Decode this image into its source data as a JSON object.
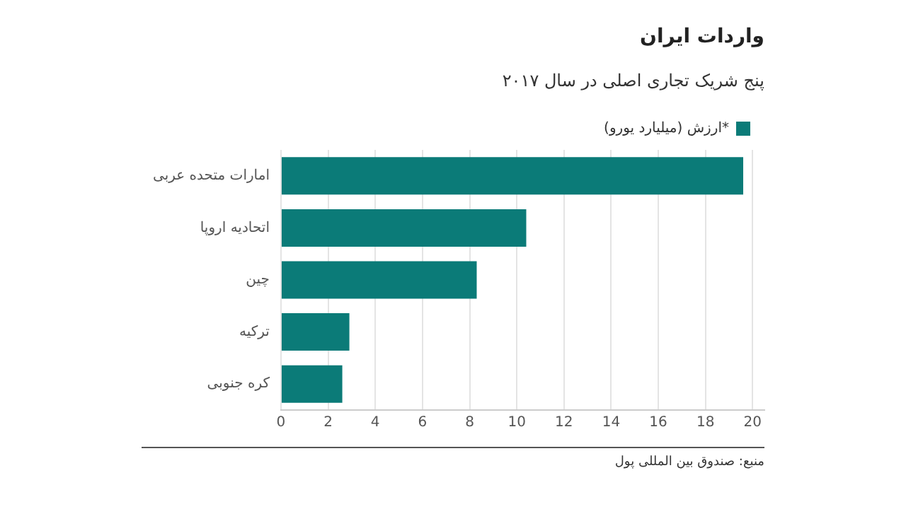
{
  "chart_data": {
    "type": "bar",
    "orientation": "horizontal",
    "title": "واردات ایران",
    "subtitle": "پنج شریک تجاری اصلی در سال ۲۰۱۷",
    "categories": [
      "امارات متحده عربی",
      "اتحادیه اروپا",
      "چین",
      "ترکیه",
      "کره جنوبی"
    ],
    "series": [
      {
        "name": "ارزش (میلیارد یورو)*",
        "color": "#0b7b78",
        "values": [
          19.6,
          10.4,
          8.3,
          2.9,
          2.6
        ]
      }
    ],
    "xlim": [
      0,
      20.5
    ],
    "xticks": [
      0,
      2,
      4,
      6,
      8,
      10,
      12,
      14,
      16,
      18,
      20
    ],
    "grid": "x",
    "legend": "top right",
    "annotations": [
      "منبع: صندوق بین المللی پول"
    ]
  }
}
